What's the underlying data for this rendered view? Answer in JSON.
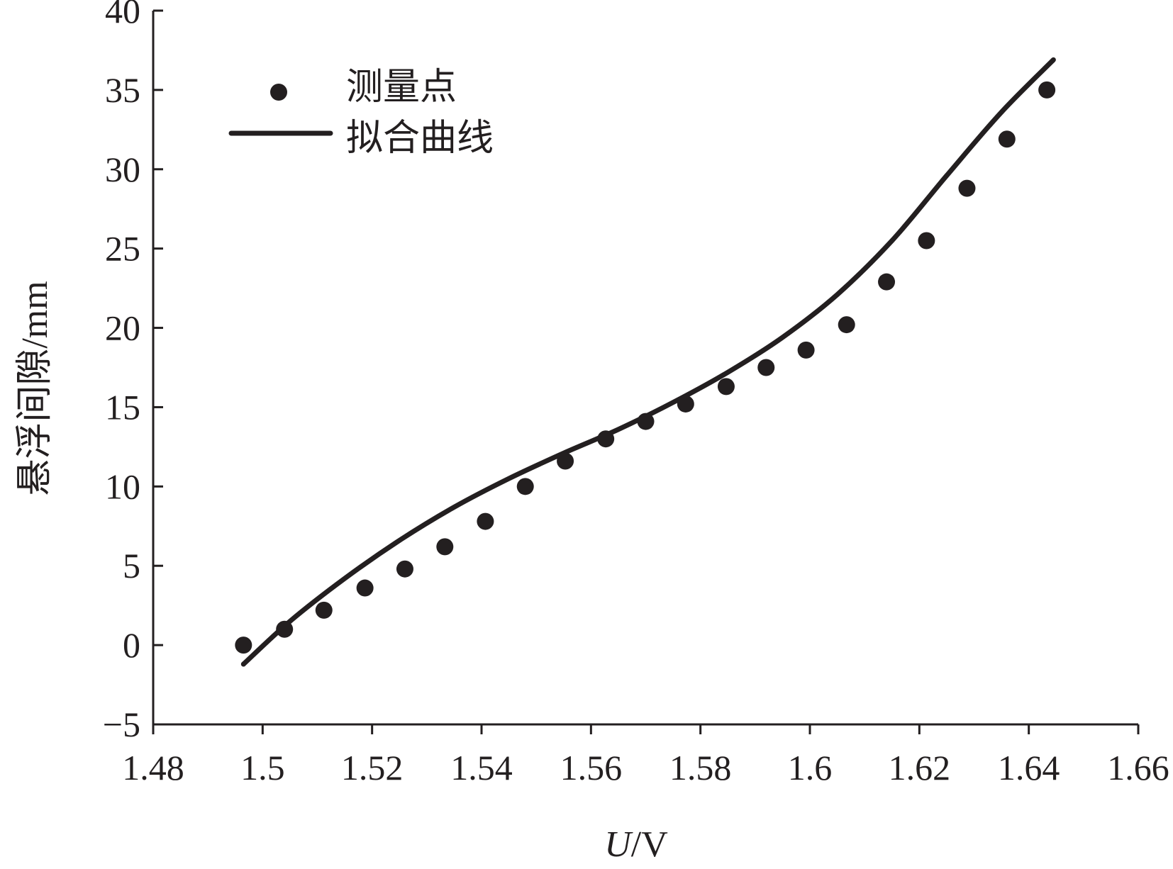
{
  "chart_data": {
    "type": "scatter",
    "xlabel_italic": "U",
    "xlabel_unit": "/V",
    "ylabel": "悬浮间隙/mm",
    "xlim": [
      1.48,
      1.66
    ],
    "ylim": [
      -5,
      40
    ],
    "x_ticks": [
      1.48,
      1.5,
      1.52,
      1.54,
      1.56,
      1.58,
      1.6,
      1.62,
      1.64,
      1.66
    ],
    "x_tick_labels": [
      "1.48",
      "1.5",
      "1.52",
      "1.54",
      "1.56",
      "1.58",
      "1.6",
      "1.62",
      "1.64",
      "1.66"
    ],
    "y_ticks": [
      -5,
      0,
      5,
      10,
      15,
      20,
      25,
      30,
      35,
      40
    ],
    "y_tick_labels": [
      "−5",
      "0",
      "5",
      "10",
      "15",
      "20",
      "25",
      "30",
      "35",
      "40"
    ],
    "legend": {
      "position": "top-left",
      "points_label": "测量点",
      "curve_label": "拟合曲线"
    },
    "series": [
      {
        "name": "测量点",
        "kind": "scatter",
        "x": [
          1.4965,
          1.504,
          1.5112,
          1.5187,
          1.526,
          1.5333,
          1.5407,
          1.548,
          1.5553,
          1.5627,
          1.57,
          1.5773,
          1.5847,
          1.592,
          1.5993,
          1.6067,
          1.614,
          1.6213,
          1.6287,
          1.636,
          1.6433
        ],
        "y": [
          0.0,
          1.0,
          2.2,
          3.6,
          4.8,
          6.2,
          7.8,
          10.0,
          11.6,
          13.0,
          14.1,
          15.2,
          16.3,
          17.5,
          18.6,
          20.2,
          22.9,
          25.5,
          28.8,
          31.9,
          35.0
        ]
      },
      {
        "name": "拟合曲线",
        "kind": "line",
        "x": [
          1.4965,
          1.505,
          1.515,
          1.525,
          1.535,
          1.545,
          1.555,
          1.565,
          1.575,
          1.585,
          1.595,
          1.605,
          1.615,
          1.625,
          1.635,
          1.6445
        ],
        "y": [
          -1.2,
          1.5,
          4.2,
          6.6,
          8.7,
          10.5,
          12.1,
          13.6,
          15.3,
          17.2,
          19.4,
          22.1,
          25.5,
          29.6,
          33.6,
          36.9
        ]
      }
    ]
  }
}
